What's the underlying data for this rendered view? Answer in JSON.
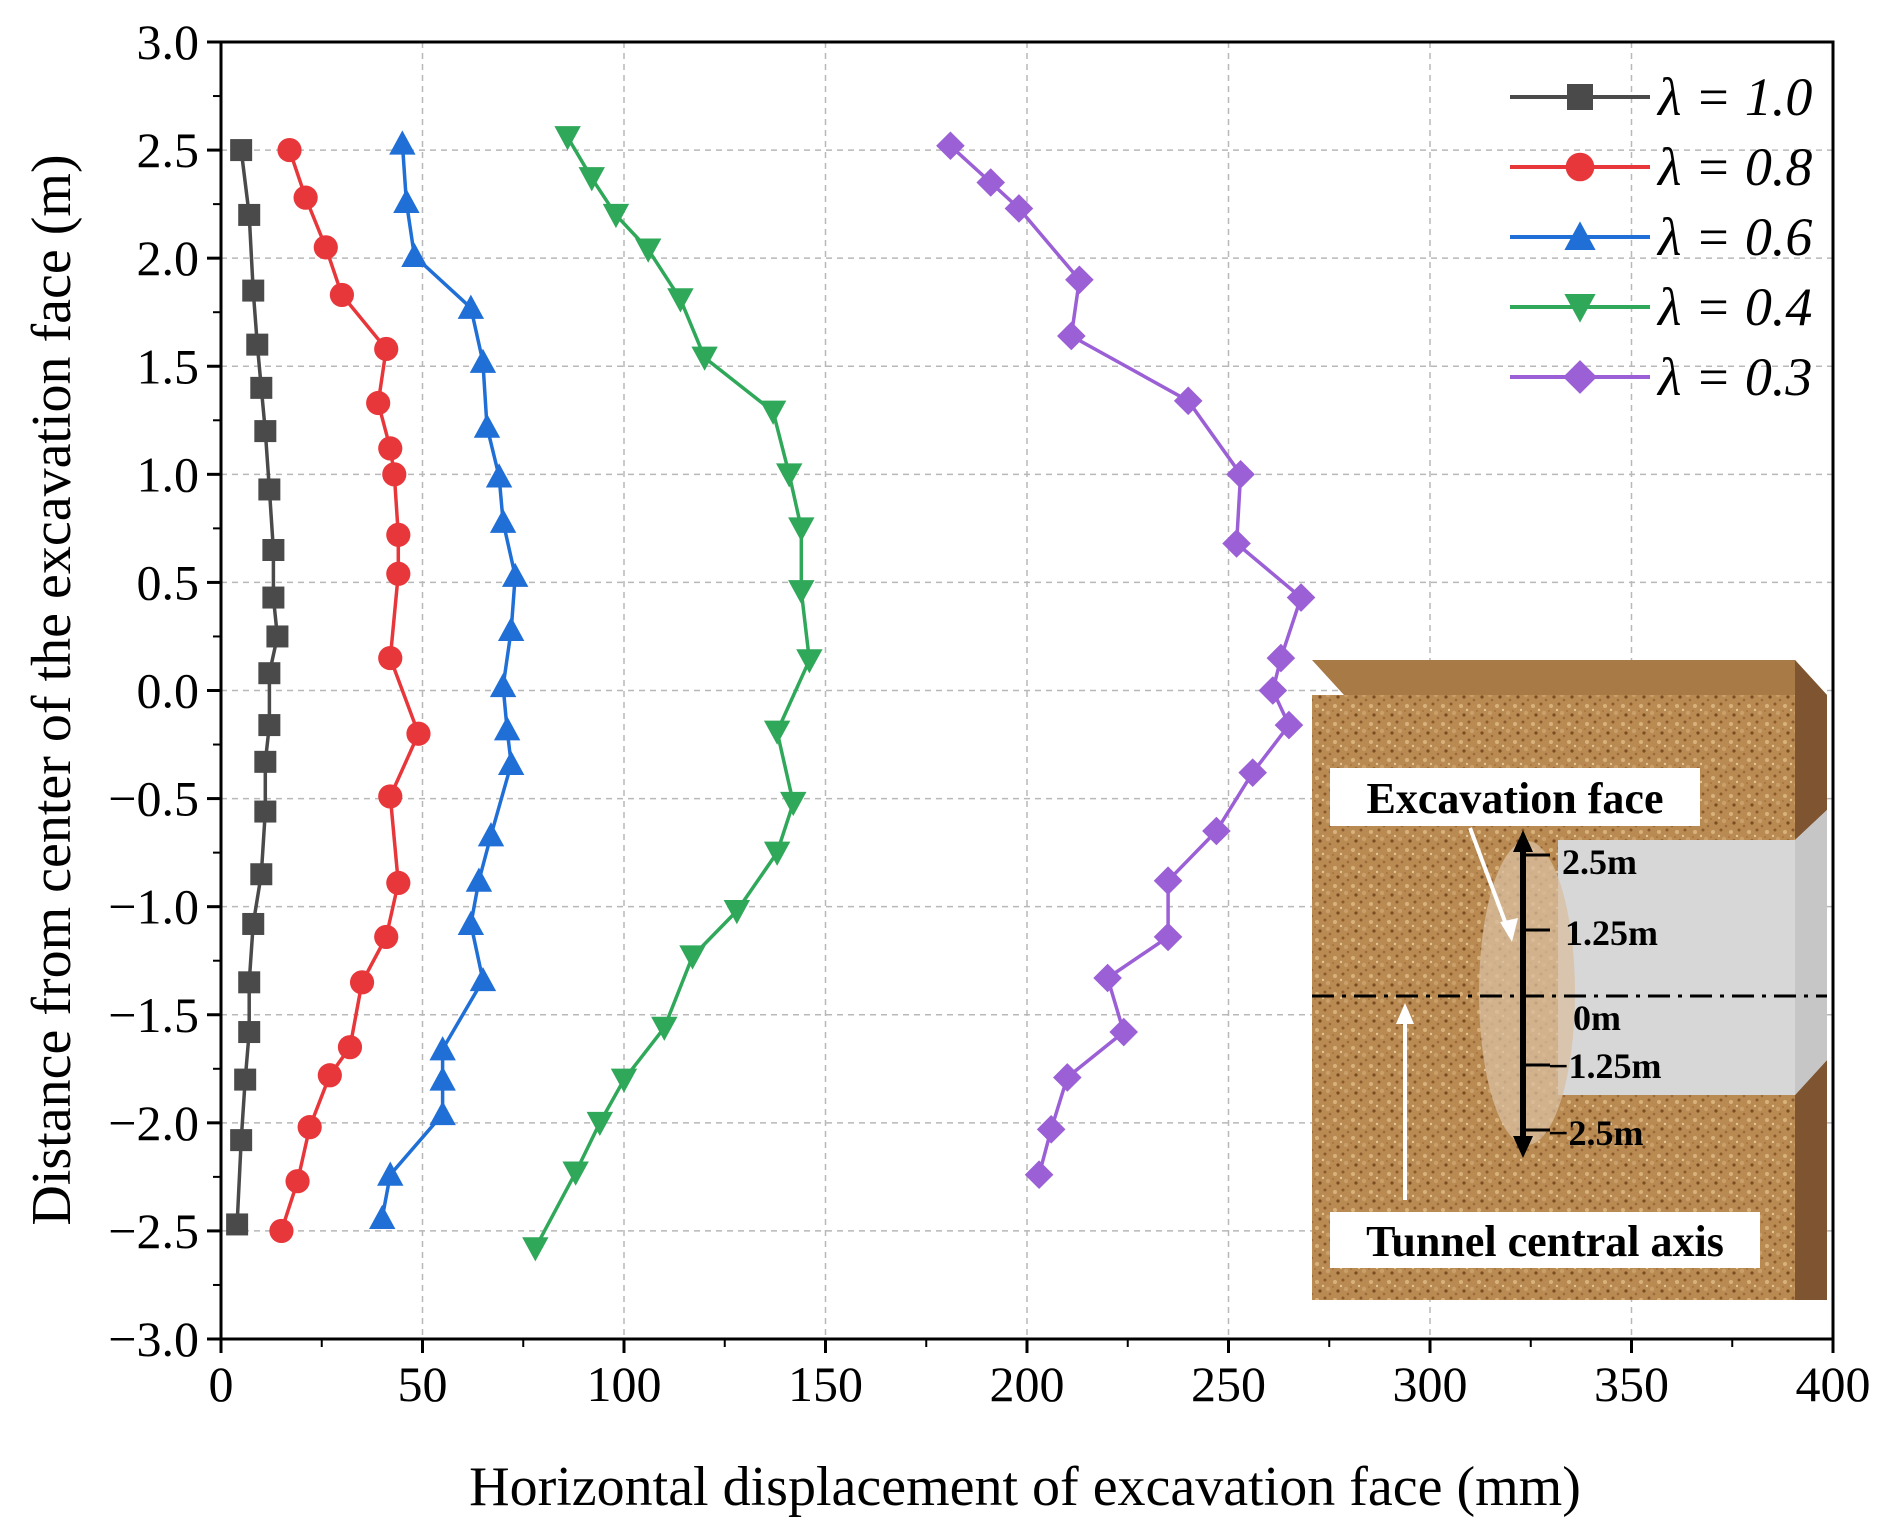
{
  "chart_data": {
    "type": "line",
    "title": "",
    "xlabel": "Horizontal displacement of excavation face (mm)",
    "ylabel": "Distance from center of the excavation face (m)",
    "xlim": [
      0,
      400
    ],
    "ylim": [
      -3.0,
      3.0
    ],
    "xticks": [
      "0",
      "50",
      "100",
      "150",
      "200",
      "250",
      "300",
      "350",
      "400"
    ],
    "yticks": [
      "−3.0",
      "−2.5",
      "−2.0",
      "−1.5",
      "−1.0",
      "−0.5",
      "0.0",
      "0.5",
      "1.0",
      "1.5",
      "2.0",
      "2.5",
      "3.0"
    ],
    "grid": true,
    "legend_position": "top-right",
    "series": [
      {
        "name": "λ = 1.0",
        "color": "#4a4a4a",
        "marker": "square",
        "points": [
          [
            5,
            2.5
          ],
          [
            7,
            2.2
          ],
          [
            8,
            1.85
          ],
          [
            9,
            1.6
          ],
          [
            10,
            1.4
          ],
          [
            11,
            1.2
          ],
          [
            12,
            0.93
          ],
          [
            13,
            0.65
          ],
          [
            13,
            0.43
          ],
          [
            14,
            0.25
          ],
          [
            12,
            0.08
          ],
          [
            12,
            -0.16
          ],
          [
            11,
            -0.33
          ],
          [
            11,
            -0.56
          ],
          [
            10,
            -0.85
          ],
          [
            8,
            -1.08
          ],
          [
            7,
            -1.35
          ],
          [
            7,
            -1.58
          ],
          [
            6,
            -1.8
          ],
          [
            5,
            -2.08
          ],
          [
            4,
            -2.47
          ]
        ]
      },
      {
        "name": "λ = 0.8",
        "color": "#e8373a",
        "marker": "circle",
        "points": [
          [
            17,
            2.5
          ],
          [
            21,
            2.28
          ],
          [
            26,
            2.05
          ],
          [
            30,
            1.83
          ],
          [
            41,
            1.58
          ],
          [
            39,
            1.33
          ],
          [
            42,
            1.12
          ],
          [
            43,
            1.0
          ],
          [
            44,
            0.72
          ],
          [
            44,
            0.54
          ],
          [
            42,
            0.15
          ],
          [
            49,
            -0.2
          ],
          [
            42,
            -0.49
          ],
          [
            44,
            -0.89
          ],
          [
            41,
            -1.14
          ],
          [
            35,
            -1.35
          ],
          [
            32,
            -1.65
          ],
          [
            27,
            -1.78
          ],
          [
            22,
            -2.02
          ],
          [
            19,
            -2.27
          ],
          [
            15,
            -2.5
          ]
        ]
      },
      {
        "name": "λ = 0.6",
        "color": "#1f6fd6",
        "marker": "triangle-up",
        "points": [
          [
            45,
            2.53
          ],
          [
            46,
            2.26
          ],
          [
            48,
            2.01
          ],
          [
            62,
            1.77
          ],
          [
            65,
            1.52
          ],
          [
            66,
            1.22
          ],
          [
            69,
            0.99
          ],
          [
            70,
            0.78
          ],
          [
            73,
            0.53
          ],
          [
            72,
            0.28
          ],
          [
            70,
            0.02
          ],
          [
            71,
            -0.18
          ],
          [
            72,
            -0.34
          ],
          [
            67,
            -0.67
          ],
          [
            64,
            -0.88
          ],
          [
            62,
            -1.08
          ],
          [
            65,
            -1.34
          ],
          [
            55,
            -1.66
          ],
          [
            55,
            -1.8
          ],
          [
            55,
            -1.96
          ],
          [
            42,
            -2.24
          ],
          [
            40,
            -2.44
          ]
        ]
      },
      {
        "name": "λ = 0.4",
        "color": "#2fa85a",
        "marker": "triangle-down",
        "points": [
          [
            86,
            2.56
          ],
          [
            92,
            2.37
          ],
          [
            98,
            2.2
          ],
          [
            106,
            2.04
          ],
          [
            114,
            1.81
          ],
          [
            120,
            1.54
          ],
          [
            137,
            1.29
          ],
          [
            141,
            1.0
          ],
          [
            144,
            0.75
          ],
          [
            144,
            0.46
          ],
          [
            146,
            0.14
          ],
          [
            138,
            -0.19
          ],
          [
            142,
            -0.52
          ],
          [
            138,
            -0.75
          ],
          [
            128,
            -1.02
          ],
          [
            117,
            -1.23
          ],
          [
            110,
            -1.56
          ],
          [
            100,
            -1.8
          ],
          [
            94,
            -2.0
          ],
          [
            88,
            -2.23
          ],
          [
            78,
            -2.58
          ]
        ]
      },
      {
        "name": "λ = 0.3",
        "color": "#9b5fd6",
        "marker": "diamond",
        "points": [
          [
            181,
            2.52
          ],
          [
            191,
            2.35
          ],
          [
            198,
            2.23
          ],
          [
            213,
            1.9
          ],
          [
            211,
            1.64
          ],
          [
            240,
            1.34
          ],
          [
            253,
            1.0
          ],
          [
            252,
            0.68
          ],
          [
            268,
            0.43
          ],
          [
            263,
            0.15
          ],
          [
            261,
            0.0
          ],
          [
            265,
            -0.16
          ],
          [
            256,
            -0.38
          ],
          [
            247,
            -0.65
          ],
          [
            235,
            -0.88
          ],
          [
            235,
            -1.14
          ],
          [
            220,
            -1.33
          ],
          [
            224,
            -1.58
          ],
          [
            210,
            -1.79
          ],
          [
            206,
            -2.03
          ],
          [
            203,
            -2.24
          ]
        ]
      }
    ],
    "inset": {
      "labels": {
        "excavation_face": "Excavation face",
        "tunnel_axis": "Tunnel central axis",
        "tick_2_5": "2.5m",
        "tick_1_25": "1.25m",
        "tick_0": "0m",
        "tick_m1_25": "−1.25m",
        "tick_m2_5": "−2.5m"
      }
    }
  }
}
